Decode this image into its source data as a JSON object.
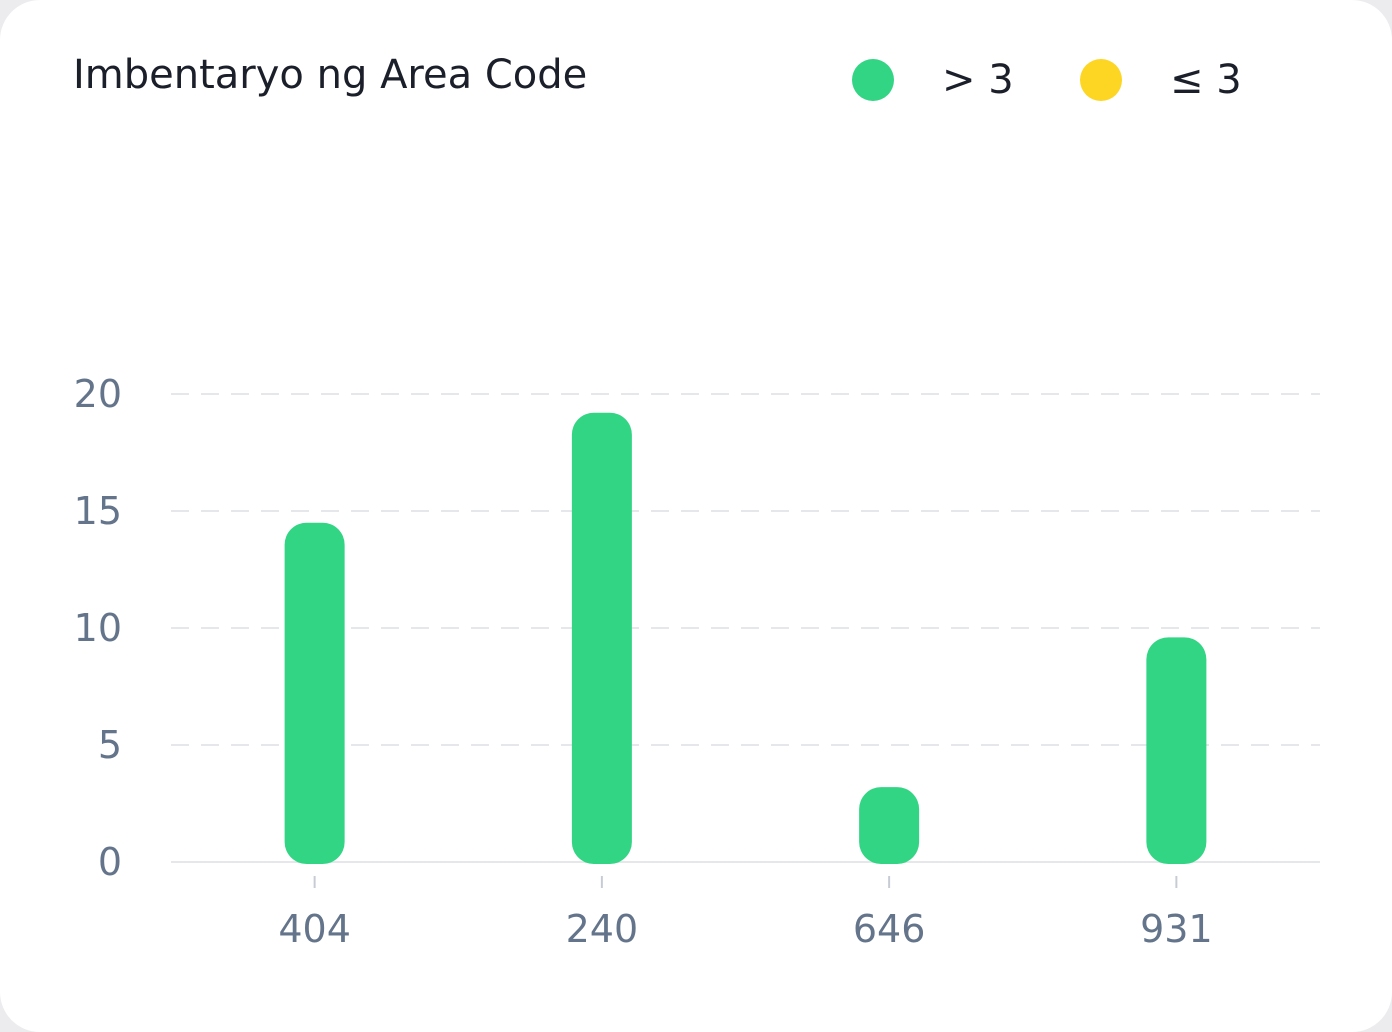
{
  "colors": {
    "above": "#32d583",
    "below": "#fdd523",
    "grid": "#e5e7eb",
    "axis_text": "#64748b",
    "title_text": "#1b1f2a"
  },
  "legend": [
    {
      "label": "> 3",
      "color": "#32d583"
    },
    {
      "label": "≤ 3",
      "color": "#fdd523"
    }
  ],
  "chart_data": {
    "type": "bar",
    "title": "Imbentaryo ng Area Code",
    "xlabel": "",
    "ylabel": "",
    "categories": [
      "404",
      "240",
      "646",
      "931"
    ],
    "values": [
      14.5,
      19.2,
      3.2,
      9.6
    ],
    "threshold": 3,
    "ylim": [
      0,
      20
    ],
    "yticks": [
      0,
      5,
      10,
      15,
      20
    ],
    "grid": true,
    "legend_position": "top-right"
  }
}
